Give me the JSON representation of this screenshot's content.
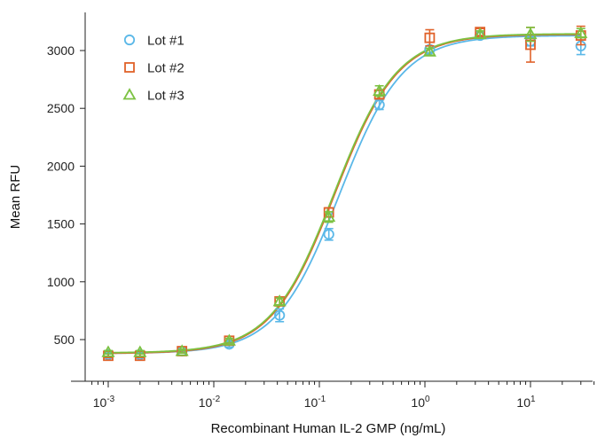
{
  "chart_data": {
    "type": "scatter",
    "xlabel": "Recombinant Human IL-2 GMP (ng/mL)",
    "ylabel": "Mean RFU",
    "xscale": "log",
    "xlim": [
      0.0007,
      40
    ],
    "ylim": [
      180,
      3350
    ],
    "x_ticks": [
      {
        "value": 0.001,
        "base": "10",
        "exp": "-3"
      },
      {
        "value": 0.01,
        "base": "10",
        "exp": "-2"
      },
      {
        "value": 0.1,
        "base": "10",
        "exp": "-1"
      },
      {
        "value": 1,
        "base": "10",
        "exp": "0"
      },
      {
        "value": 10,
        "base": "10",
        "exp": "1"
      }
    ],
    "y_ticks": [
      500,
      1000,
      1500,
      2000,
      2500,
      3000
    ],
    "legend_position": "top-left",
    "x": [
      0.001,
      0.002,
      0.005,
      0.014,
      0.042,
      0.123,
      0.37,
      1.11,
      3.33,
      10,
      30
    ],
    "series": [
      {
        "name": "Lot #1",
        "marker": "circle",
        "color": "#5bb8e8",
        "values": [
          370,
          370,
          400,
          460,
          710,
          1410,
          2530,
          3010,
          3130,
          3080,
          3040
        ],
        "errors": [
          15,
          15,
          15,
          25,
          55,
          50,
          40,
          30,
          25,
          40,
          75
        ],
        "fit": {
          "bottom": 380,
          "top": 3130,
          "ec50": 0.155,
          "hill": 1.45
        }
      },
      {
        "name": "Lot #2",
        "marker": "square",
        "color": "#e0622a",
        "values": [
          360,
          360,
          400,
          490,
          830,
          1600,
          2620,
          3110,
          3160,
          3050,
          3130
        ],
        "errors": [
          15,
          15,
          15,
          20,
          30,
          40,
          35,
          70,
          30,
          150,
          80
        ],
        "fit": {
          "bottom": 380,
          "top": 3140,
          "ec50": 0.14,
          "hill": 1.45
        }
      },
      {
        "name": "Lot #3",
        "marker": "triangle",
        "color": "#7cc242",
        "values": [
          390,
          390,
          400,
          490,
          830,
          1560,
          2650,
          2990,
          3140,
          3140,
          3150
        ],
        "errors": [
          15,
          15,
          15,
          20,
          30,
          45,
          45,
          30,
          30,
          60,
          40
        ],
        "fit": {
          "bottom": 385,
          "top": 3145,
          "ec50": 0.138,
          "hill": 1.45
        }
      }
    ]
  }
}
